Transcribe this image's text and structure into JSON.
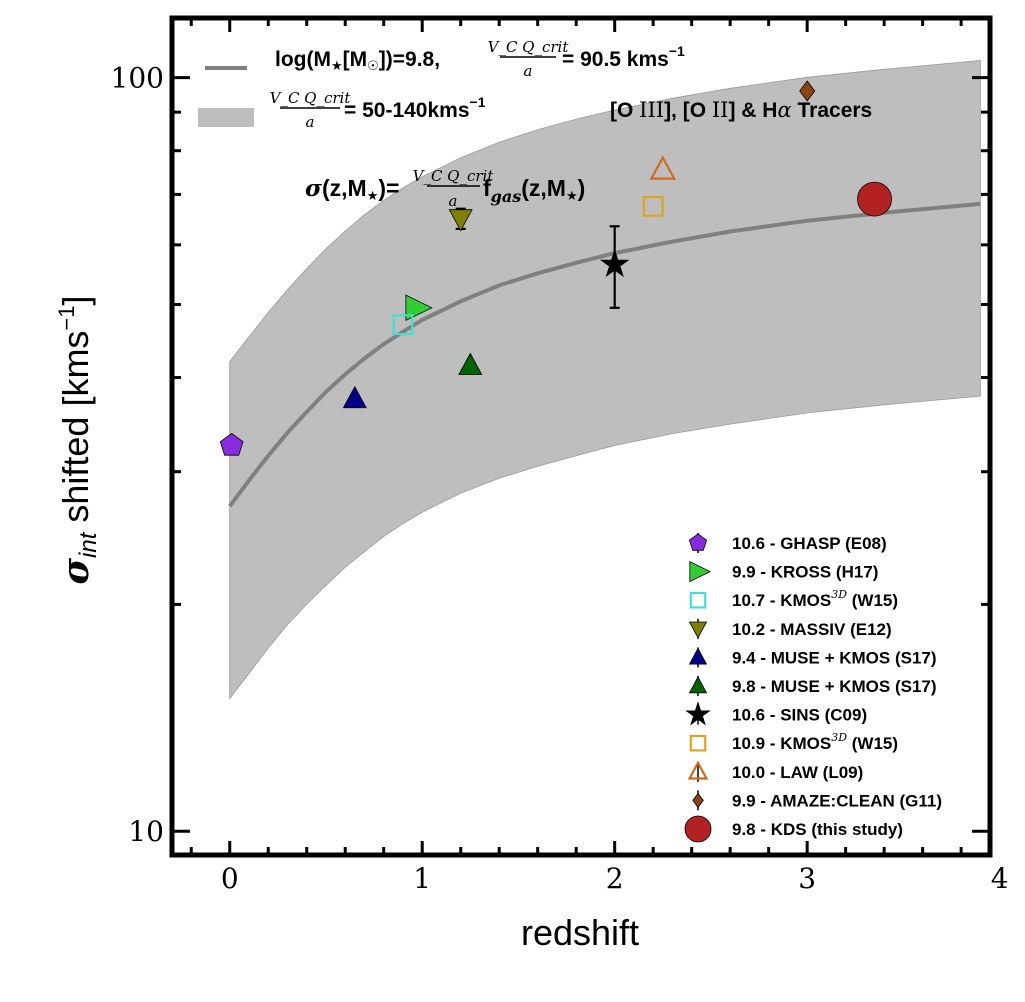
{
  "chart_data": {
    "type": "scatter",
    "xlabel": "redshift",
    "ylabel_parts": {
      "sigma": "σ",
      "sub": "int",
      "main": " shifted [kms",
      "sup": "−1",
      "close": "]"
    },
    "xlim": [
      -0.3,
      3.95
    ],
    "ylim": [
      9.3,
      120
    ],
    "yscale": "log",
    "x_ticks": [
      0,
      1,
      2,
      3,
      4
    ],
    "y_ticks": [
      10,
      100
    ],
    "grid": false,
    "legend_position": "lower-right",
    "colors": {
      "model_line": "#808080",
      "band_fill": "#bebebe",
      "axis": "#000000"
    },
    "model": {
      "label_text": "log(M★[M☉])=9.8, V_C Q_crit / a = 90.5 kms⁻¹",
      "label_left": "log(M",
      "label_mid": "[M",
      "label_mid2": "])=9.8, ",
      "label_frac_num": "V_C Q_crit",
      "label_frac_den": "a",
      "label_right": " = 90.5 kms",
      "label_sup": "−1",
      "curve": {
        "z": [
          0.0,
          0.1,
          0.2,
          0.3,
          0.4,
          0.5,
          0.6,
          0.7,
          0.8,
          0.9,
          1.0,
          1.2,
          1.4,
          1.6,
          1.8,
          2.0,
          2.3,
          2.6,
          3.0,
          3.4,
          3.9
        ],
        "sigma": [
          27.0,
          29.2,
          31.5,
          33.8,
          36.0,
          38.3,
          40.4,
          42.4,
          44.3,
          46.0,
          47.7,
          50.5,
          53.0,
          55.0,
          56.8,
          58.5,
          60.6,
          62.5,
          64.6,
          66.2,
          68.0
        ]
      }
    },
    "band": {
      "label_frac_num": "V_C Q_crit",
      "label_frac_den": "a",
      "label_right": " = 50-140kms",
      "label_sup": "−1",
      "lower": [
        15.0,
        16.2,
        17.5,
        18.8,
        20.0,
        21.2,
        22.4,
        23.5,
        24.6,
        25.6,
        26.5,
        28.1,
        29.4,
        30.5,
        31.5,
        32.5,
        33.7,
        34.7,
        35.9,
        36.8,
        37.8
      ],
      "upper": [
        42.0,
        45.3,
        48.8,
        52.3,
        55.8,
        59.3,
        62.6,
        65.8,
        68.7,
        71.4,
        73.9,
        78.3,
        82.1,
        85.3,
        88.1,
        90.6,
        93.9,
        96.8,
        100.1,
        102.6,
        105.4
      ]
    },
    "tracers_text": "[O III], [O II] & Hα Tracers",
    "tracers_parts": {
      "a": "[O ",
      "b": "III",
      "c": "], [O ",
      "d": "II",
      "e": "] & H",
      "f": "α",
      "g": " Tracers"
    },
    "equation_parts": {
      "lhs": "σ(z,M",
      "star": "★",
      "mid": ")=",
      "frac_num": "V_C Q_crit",
      "frac_den": "a",
      "f": "f",
      "sub": "gas",
      "tail": "(z,M",
      "tail_star": "★",
      "close": ")"
    },
    "series": [
      {
        "name": "10.6 - GHASP (E08)",
        "marker": "pentagon",
        "color": "#8a2be2",
        "filled": true,
        "x": [
          0.01
        ],
        "y": [
          32.5
        ]
      },
      {
        "name": "9.9 - KROSS (H17)",
        "marker": "triangle-right",
        "color": "#32cd32",
        "filled": true,
        "x": [
          0.97
        ],
        "y": [
          49.5
        ]
      },
      {
        "name": "10.7 - KMOS",
        "name_sup": "3D",
        "name_tail": " (W15)",
        "marker": "square",
        "color": "#40e0d0",
        "filled": false,
        "x": [
          0.9
        ],
        "y": [
          47.0
        ]
      },
      {
        "name": "10.2 - MASSIV (E12)",
        "marker": "triangle-down",
        "color": "#808000",
        "filled": true,
        "x": [
          1.2
        ],
        "y": [
          65.0
        ],
        "yerr": [
          2.0,
          2.0
        ]
      },
      {
        "name": "9.4 - MUSE + KMOS (S17)",
        "marker": "triangle-up",
        "color": "#00008b",
        "filled": true,
        "x": [
          0.65
        ],
        "y": [
          37.5
        ]
      },
      {
        "name": "9.8 - MUSE + KMOS (S17)",
        "marker": "triangle-up",
        "color": "#006400",
        "filled": true,
        "x": [
          1.25
        ],
        "y": [
          41.5
        ]
      },
      {
        "name": "10.6 - SINS (C09)",
        "marker": "star",
        "color": "#000000",
        "filled": true,
        "x": [
          2.0
        ],
        "y": [
          56.5
        ],
        "yerr": [
          7.0,
          7.0
        ]
      },
      {
        "name": "10.9 - KMOS",
        "name_sup": "3D",
        "name_tail": " (W15)",
        "marker": "square",
        "color": "#daa520",
        "filled": false,
        "x": [
          2.2
        ],
        "y": [
          67.5
        ]
      },
      {
        "name": "10.0 - LAW (L09)",
        "marker": "triangle-up",
        "color": "#d2691e",
        "filled": false,
        "x": [
          2.25
        ],
        "y": [
          75.5
        ]
      },
      {
        "name": "9.9 - AMAZE:CLEAN (G11)",
        "marker": "diamond",
        "color": "#8b4513",
        "filled": true,
        "x": [
          3.0
        ],
        "y": [
          96.0
        ]
      },
      {
        "name": "9.8 - KDS (this study)",
        "marker": "circle",
        "color": "#b22222",
        "filled": true,
        "x": [
          3.35
        ],
        "y": [
          69.0
        ]
      }
    ]
  }
}
